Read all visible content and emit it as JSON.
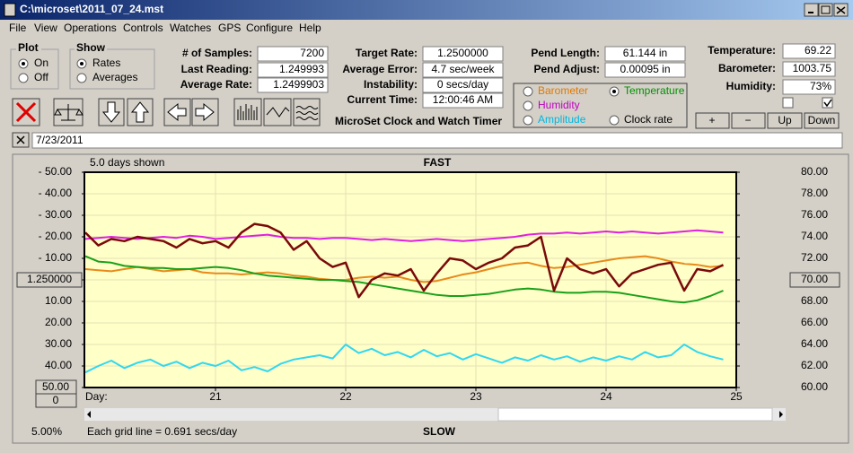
{
  "window": {
    "title": "C:\\microset\\2011_07_24.mst"
  },
  "menu": [
    "File",
    "View",
    "Operations",
    "Controls",
    "Watches",
    "GPS",
    "Configure",
    "Help"
  ],
  "plot": {
    "title": "Plot",
    "options": [
      "On",
      "Off"
    ]
  },
  "show": {
    "title": "Show",
    "options": [
      "Rates",
      "Averages"
    ]
  },
  "samples": [
    {
      "label": "# of Samples:",
      "value": "7200"
    },
    {
      "label": "Last Reading:",
      "value": "1.249993"
    },
    {
      "label": "Average Rate:",
      "value": "1.2499903"
    }
  ],
  "rates": [
    {
      "label": "Target Rate:",
      "value": "1.2500000"
    },
    {
      "label": "Average Error:",
      "value": "4.7 sec/week"
    },
    {
      "label": "Instability:",
      "value": "0 secs/day"
    },
    {
      "label": "Current Time:",
      "value": "12:00:46 AM"
    }
  ],
  "pendulum": [
    {
      "label": "Pend Length:",
      "value": "61.144 in"
    },
    {
      "label": "Pend Adjust:",
      "value": "0.00095 in"
    }
  ],
  "environment": [
    {
      "label": "Temperature:",
      "value": "69.22"
    },
    {
      "label": "Barometer:",
      "value": "1003.75"
    },
    {
      "label": "Humidity:",
      "value": "73%"
    }
  ],
  "sensors": [
    "Barometer",
    "Temperature",
    "Humidity",
    "Amplitude",
    "Clock rate"
  ],
  "app_name": "MicroSet Clock and Watch Timer",
  "buttons": [
    "+",
    "−",
    "Up",
    "Down"
  ],
  "date": "7/23/2011",
  "chart_data": {
    "type": "line",
    "top_label": "FAST",
    "bottom_label": "SLOW",
    "span_label": "5.0 days shown",
    "x_label": "Day:",
    "grid_note": "Each grid line = 0.691 secs/day",
    "zoom": "5.00%",
    "offset": "0",
    "grid": true,
    "x": [
      20.0,
      20.1,
      20.2,
      20.3,
      20.4,
      20.5,
      20.6,
      20.7,
      20.8,
      20.9,
      21.0,
      21.1,
      21.2,
      21.3,
      21.4,
      21.5,
      21.6,
      21.7,
      21.8,
      21.9,
      22.0,
      22.1,
      22.2,
      22.3,
      22.4,
      22.5,
      22.6,
      22.7,
      22.8,
      22.9,
      23.0,
      23.1,
      23.2,
      23.3,
      23.4,
      23.5,
      23.6,
      23.7,
      23.8,
      23.9,
      24.0,
      24.1,
      24.2,
      24.3,
      24.4,
      24.5,
      24.6,
      24.7,
      24.8,
      24.9
    ],
    "xlim": [
      20,
      25
    ],
    "xticks": [
      21,
      22,
      23,
      24,
      25
    ],
    "ylim": [
      -50,
      50
    ],
    "yticks": [
      {
        "value": 50,
        "label": "- 50.00"
      },
      {
        "value": 40,
        "label": "- 40.00"
      },
      {
        "value": 30,
        "label": "- 30.00"
      },
      {
        "value": 20,
        "label": "- 20.00"
      },
      {
        "value": 10,
        "label": "- 10.00"
      },
      {
        "value": 0,
        "label": "1.250000"
      },
      {
        "value": -10,
        "label": "10.00"
      },
      {
        "value": -20,
        "label": "20.00"
      },
      {
        "value": -30,
        "label": "30.00"
      },
      {
        "value": -40,
        "label": "40.00"
      },
      {
        "value": -50,
        "label": "50.00"
      }
    ],
    "y2lim": [
      60,
      80
    ],
    "y2ticks": [
      {
        "value": 80,
        "label": "80.00"
      },
      {
        "value": 78,
        "label": "78.00"
      },
      {
        "value": 76,
        "label": "76.00"
      },
      {
        "value": 74,
        "label": "74.00"
      },
      {
        "value": 72,
        "label": "72.00"
      },
      {
        "value": 70,
        "label": "70.00"
      },
      {
        "value": 68,
        "label": "68.00"
      },
      {
        "value": 66,
        "label": "66.00"
      },
      {
        "value": 64,
        "label": "64.00"
      },
      {
        "value": 62,
        "label": "62.00"
      },
      {
        "value": 60,
        "label": "60.00"
      }
    ],
    "series": [
      {
        "name": "Humidity",
        "color": "#e020e0",
        "axis": "y2",
        "values": [
          73.8,
          73.9,
          74.0,
          73.9,
          73.8,
          73.9,
          74.0,
          73.9,
          74.1,
          74.0,
          73.8,
          73.9,
          74.0,
          74.1,
          74.2,
          74.0,
          73.9,
          73.9,
          73.8,
          73.9,
          73.9,
          73.8,
          73.7,
          73.8,
          73.7,
          73.6,
          73.7,
          73.8,
          73.7,
          73.6,
          73.7,
          73.8,
          73.9,
          74.0,
          74.2,
          74.3,
          74.3,
          74.4,
          74.3,
          74.4,
          74.5,
          74.4,
          74.5,
          74.4,
          74.3,
          74.4,
          74.5,
          74.6,
          74.5,
          74.4
        ]
      },
      {
        "name": "Barometer",
        "color": "#e88a1a",
        "axis": "y2",
        "values": [
          71.0,
          70.9,
          70.8,
          71.0,
          71.2,
          71.0,
          70.8,
          70.9,
          71.0,
          70.7,
          70.6,
          70.6,
          70.5,
          70.6,
          70.7,
          70.6,
          70.4,
          70.3,
          70.1,
          70.0,
          70.0,
          70.2,
          70.3,
          70.2,
          70.3,
          70.0,
          69.8,
          69.9,
          70.2,
          70.5,
          70.7,
          71.0,
          71.3,
          71.5,
          71.6,
          71.3,
          71.1,
          71.2,
          71.4,
          71.6,
          71.8,
          72.0,
          72.1,
          72.2,
          72.0,
          71.7,
          71.5,
          71.4,
          71.2,
          71.3
        ]
      },
      {
        "name": "Temperature",
        "color": "#1aa01a",
        "axis": "y2",
        "values": [
          72.2,
          71.7,
          71.6,
          71.3,
          71.2,
          71.1,
          71.1,
          71.0,
          71.0,
          71.1,
          71.2,
          71.1,
          70.9,
          70.6,
          70.4,
          70.3,
          70.2,
          70.1,
          70.0,
          70.0,
          69.9,
          69.8,
          69.6,
          69.4,
          69.2,
          69.0,
          68.8,
          68.6,
          68.5,
          68.5,
          68.6,
          68.7,
          68.9,
          69.1,
          69.2,
          69.1,
          68.9,
          68.8,
          68.8,
          68.9,
          68.9,
          68.8,
          68.6,
          68.4,
          68.2,
          68.0,
          67.9,
          68.1,
          68.5,
          69.0
        ]
      },
      {
        "name": "Amplitude",
        "color": "#30d8f0",
        "axis": "y2",
        "values": [
          61.4,
          62.0,
          62.5,
          61.8,
          62.3,
          62.6,
          62.0,
          62.4,
          61.8,
          62.3,
          62.0,
          62.5,
          61.6,
          61.9,
          61.5,
          62.2,
          62.6,
          62.8,
          63.0,
          62.7,
          64.0,
          63.2,
          63.6,
          63.0,
          63.3,
          62.8,
          63.5,
          62.9,
          63.2,
          62.6,
          63.1,
          62.7,
          62.3,
          62.8,
          62.5,
          63.0,
          62.6,
          62.9,
          62.4,
          62.8,
          62.5,
          62.9,
          62.6,
          63.3,
          62.8,
          63.0,
          64.0,
          63.3,
          62.9,
          62.6
        ]
      },
      {
        "name": "Clock rate",
        "color": "#7a0a0a",
        "values": [
          22,
          16,
          19,
          18,
          20,
          19,
          18,
          15,
          19,
          17,
          18,
          15,
          22,
          26,
          25,
          22,
          14,
          18,
          10,
          6,
          8,
          -8,
          0,
          3,
          2,
          5,
          -5,
          3,
          10,
          9,
          5,
          8,
          10,
          15,
          16,
          20,
          -5,
          10,
          5,
          3,
          5,
          -3,
          3,
          5,
          7,
          8,
          -5,
          5,
          4,
          7
        ]
      }
    ]
  }
}
